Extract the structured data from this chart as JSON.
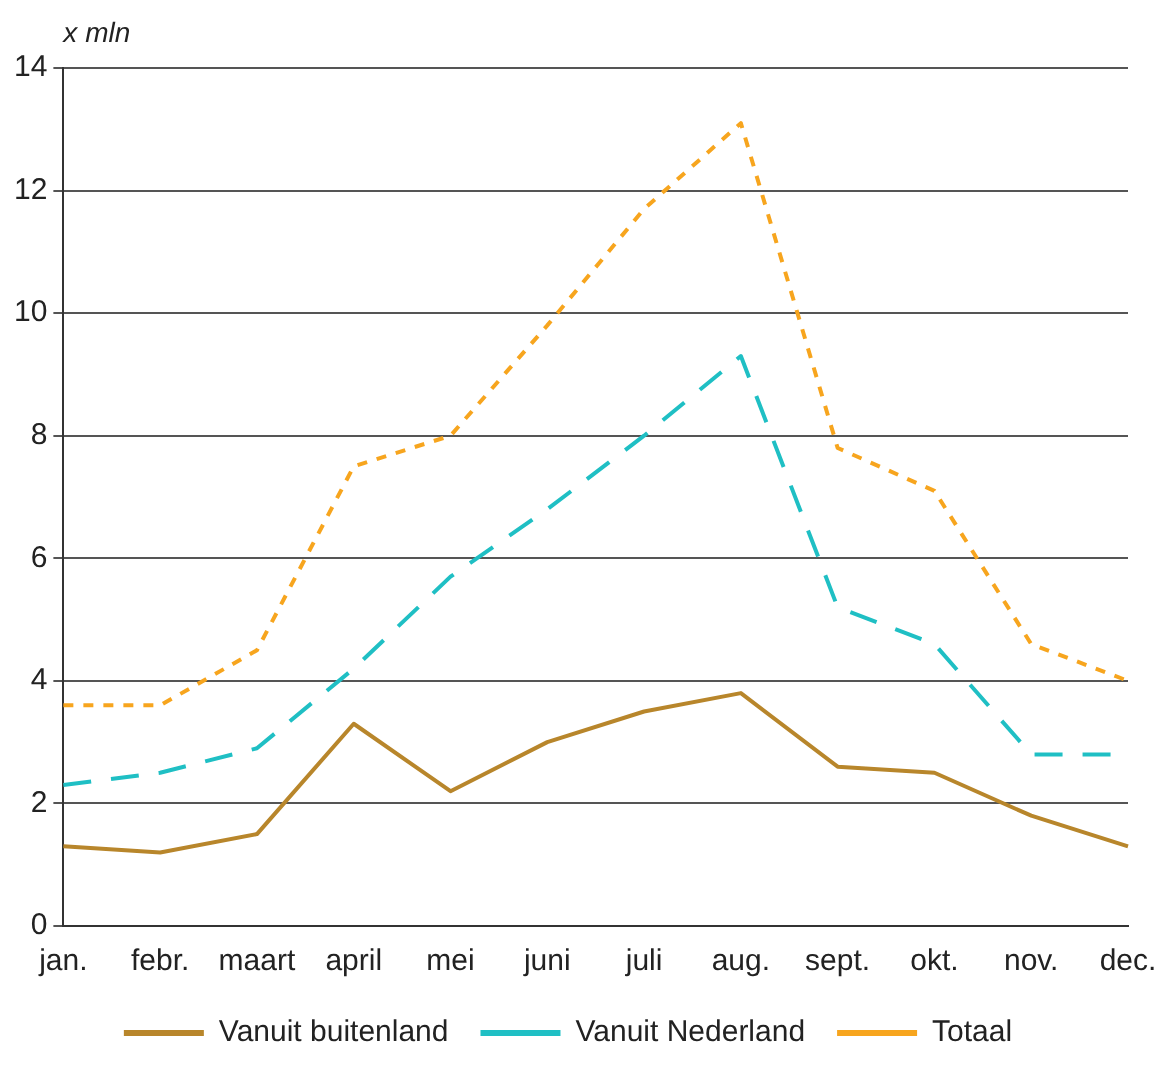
{
  "chart_data": {
    "type": "line",
    "ylabel": "x mln",
    "categories": [
      "jan.",
      "febr.",
      "maart",
      "april",
      "mei",
      "juni",
      "juli",
      "aug.",
      "sept.",
      "okt.",
      "nov.",
      "dec."
    ],
    "series": [
      {
        "name": "Vanuit buitenland",
        "color": "#b8862b",
        "line_style": "solid",
        "values": [
          1.3,
          1.2,
          1.5,
          3.3,
          2.2,
          3.0,
          3.5,
          3.8,
          2.6,
          2.5,
          1.8,
          1.3
        ]
      },
      {
        "name": "Vanuit Nederland",
        "color": "#1fbfc4",
        "line_style": "dashed",
        "values": [
          2.3,
          2.5,
          2.9,
          4.2,
          5.7,
          6.8,
          8.0,
          9.3,
          5.2,
          4.6,
          2.8,
          2.8
        ]
      },
      {
        "name": "Totaal",
        "color": "#f7a51e",
        "line_style": "dotted",
        "values": [
          3.6,
          3.6,
          4.5,
          7.5,
          8.0,
          9.8,
          11.7,
          13.1,
          7.8,
          7.1,
          4.6,
          4.0
        ]
      }
    ],
    "ylim": [
      0,
      14
    ],
    "yticks": [
      0,
      2,
      4,
      6,
      8,
      10,
      12,
      14
    ],
    "grid": "y",
    "legend": "bottom",
    "marker": "none"
  }
}
